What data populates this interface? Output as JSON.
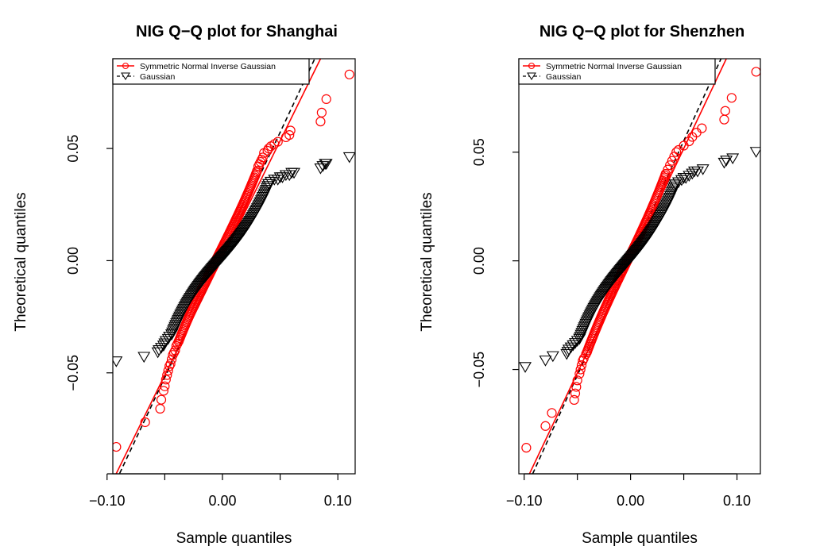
{
  "chart_data": [
    {
      "type": "scatter",
      "title": "NIG Q−Q plot for Shanghai",
      "xlabel": "Sample quantiles",
      "ylabel": "Theoretical quantiles",
      "xlim": [
        -0.095,
        0.115
      ],
      "ylim": [
        -0.095,
        0.09
      ],
      "xticks": [
        -0.1,
        0.0,
        0.1
      ],
      "xtick_labels": [
        "−0.10",
        "0.00",
        "0.10"
      ],
      "xminor": [
        -0.05,
        0.05
      ],
      "yticks": [
        -0.05,
        0.0,
        0.05
      ],
      "ytick_labels": [
        "−0.05",
        "0.00",
        "0.05"
      ],
      "grid": false,
      "legend": {
        "position": "top-left",
        "entries": [
          "Symmetric Normal Inverse Gaussian",
          "Gaussian"
        ]
      },
      "series": [
        {
          "name": "Symmetric Normal Inverse Gaussian",
          "marker": "circle",
          "color": "#ff0000",
          "ref_line": {
            "style": "solid",
            "color": "#ff0000",
            "p1": [
              -0.095,
              -0.098
            ],
            "p2": [
              0.085,
              0.09
            ]
          },
          "tails_low": [
            [
              -0.092,
              -0.083
            ],
            [
              -0.067,
              -0.072
            ],
            [
              -0.054,
              -0.066
            ],
            [
              -0.053,
              -0.062
            ],
            [
              -0.051,
              -0.058
            ],
            [
              -0.05,
              -0.056
            ],
            [
              -0.049,
              -0.053
            ],
            [
              -0.048,
              -0.051
            ],
            [
              -0.047,
              -0.049
            ],
            [
              -0.046,
              -0.047
            ],
            [
              -0.045,
              -0.046
            ],
            [
              -0.044,
              -0.044
            ],
            [
              -0.043,
              -0.042
            ],
            [
              -0.042,
              -0.041
            ],
            [
              -0.041,
              -0.04
            ],
            [
              -0.04,
              -0.038
            ],
            [
              -0.039,
              -0.037
            ],
            [
              -0.038,
              -0.036
            ]
          ],
          "tails_high": [
            [
              0.03,
              0.04
            ],
            [
              0.031,
              0.042
            ],
            [
              0.032,
              0.043
            ],
            [
              0.033,
              0.044
            ],
            [
              0.034,
              0.045
            ],
            [
              0.035,
              0.046
            ],
            [
              0.036,
              0.048
            ],
            [
              0.039,
              0.049
            ],
            [
              0.04,
              0.05
            ],
            [
              0.042,
              0.051
            ],
            [
              0.045,
              0.052
            ],
            [
              0.048,
              0.053
            ],
            [
              0.055,
              0.055
            ],
            [
              0.058,
              0.056
            ],
            [
              0.059,
              0.058
            ],
            [
              0.085,
              0.062
            ],
            [
              0.086,
              0.066
            ],
            [
              0.09,
              0.072
            ],
            [
              0.11,
              0.083
            ]
          ],
          "body": {
            "x_from": -0.038,
            "x_to": 0.03,
            "y_from": -0.036,
            "y_to": 0.04,
            "s": 0.7
          }
        },
        {
          "name": "Gaussian",
          "marker": "triangle-down",
          "color": "#000000",
          "ref_line": {
            "style": "dashed",
            "color": "#000000",
            "p1": [
              -0.092,
              -0.098
            ],
            "p2": [
              0.08,
              0.09
            ]
          },
          "tails_low": [
            [
              -0.092,
              -0.045
            ],
            [
              -0.068,
              -0.043
            ],
            [
              -0.056,
              -0.041
            ],
            [
              -0.055,
              -0.04
            ],
            [
              -0.053,
              -0.039
            ],
            [
              -0.051,
              -0.038
            ],
            [
              -0.05,
              -0.037
            ],
            [
              -0.049,
              -0.036
            ],
            [
              -0.047,
              -0.035
            ],
            [
              -0.046,
              -0.034
            ],
            [
              -0.044,
              -0.033
            ]
          ],
          "tails_high": [
            [
              0.04,
              0.034
            ],
            [
              0.042,
              0.035
            ],
            [
              0.045,
              0.036
            ],
            [
              0.048,
              0.036
            ],
            [
              0.05,
              0.037
            ],
            [
              0.052,
              0.037
            ],
            [
              0.055,
              0.038
            ],
            [
              0.058,
              0.038
            ],
            [
              0.06,
              0.039
            ],
            [
              0.062,
              0.039
            ],
            [
              0.085,
              0.041
            ],
            [
              0.087,
              0.042
            ],
            [
              0.089,
              0.043
            ],
            [
              0.09,
              0.043
            ],
            [
              0.11,
              0.046
            ]
          ],
          "body": {
            "x_from": -0.044,
            "x_to": 0.04,
            "y_from": -0.033,
            "y_to": 0.034,
            "s": 1.4
          }
        }
      ]
    },
    {
      "type": "scatter",
      "title": "NIG Q−Q plot for Shenzhen",
      "xlabel": "Sample quantiles",
      "ylabel": "Theoretical quantiles",
      "xlim": [
        -0.105,
        0.122
      ],
      "ylim": [
        -0.098,
        0.093
      ],
      "xticks": [
        -0.1,
        0.0,
        0.1
      ],
      "xtick_labels": [
        "−0.10",
        "0.00",
        "0.10"
      ],
      "xminor": [
        -0.05,
        0.05
      ],
      "yticks": [
        -0.05,
        0.0,
        0.05
      ],
      "ytick_labels": [
        "−0.05",
        "0.00",
        "0.05"
      ],
      "grid": false,
      "legend": {
        "position": "top-left",
        "entries": [
          "Symmetric Normal Inverse Gaussian",
          "Gaussian"
        ]
      },
      "series": [
        {
          "name": "Symmetric Normal Inverse Gaussian",
          "marker": "circle",
          "color": "#ff0000",
          "ref_line": {
            "style": "solid",
            "color": "#ff0000",
            "p1": [
              -0.095,
              -0.098
            ],
            "p2": [
              0.09,
              0.093
            ]
          },
          "tails_low": [
            [
              -0.098,
              -0.086
            ],
            [
              -0.08,
              -0.076
            ],
            [
              -0.074,
              -0.07
            ],
            [
              -0.053,
              -0.064
            ],
            [
              -0.052,
              -0.061
            ],
            [
              -0.051,
              -0.058
            ],
            [
              -0.05,
              -0.055
            ],
            [
              -0.048,
              -0.052
            ],
            [
              -0.047,
              -0.05
            ],
            [
              -0.046,
              -0.048
            ],
            [
              -0.045,
              -0.046
            ],
            [
              -0.044,
              -0.045
            ],
            [
              -0.042,
              -0.043
            ],
            [
              -0.041,
              -0.042
            ]
          ],
          "tails_high": [
            [
              0.033,
              0.04
            ],
            [
              0.035,
              0.042
            ],
            [
              0.037,
              0.044
            ],
            [
              0.039,
              0.046
            ],
            [
              0.041,
              0.048
            ],
            [
              0.043,
              0.05
            ],
            [
              0.045,
              0.051
            ],
            [
              0.05,
              0.053
            ],
            [
              0.055,
              0.055
            ],
            [
              0.058,
              0.057
            ],
            [
              0.062,
              0.059
            ],
            [
              0.067,
              0.061
            ],
            [
              0.088,
              0.065
            ],
            [
              0.089,
              0.069
            ],
            [
              0.095,
              0.075
            ],
            [
              0.118,
              0.087
            ]
          ],
          "body": {
            "x_from": -0.041,
            "x_to": 0.033,
            "y_from": -0.042,
            "y_to": 0.04,
            "s": 0.75
          }
        },
        {
          "name": "Gaussian",
          "marker": "triangle-down",
          "color": "#000000",
          "ref_line": {
            "style": "dashed",
            "color": "#000000",
            "p1": [
              -0.092,
              -0.098
            ],
            "p2": [
              0.085,
              0.093
            ]
          },
          "tails_low": [
            [
              -0.099,
              -0.049
            ],
            [
              -0.08,
              -0.046
            ],
            [
              -0.073,
              -0.044
            ],
            [
              -0.06,
              -0.043
            ],
            [
              -0.059,
              -0.042
            ],
            [
              -0.058,
              -0.041
            ],
            [
              -0.056,
              -0.04
            ],
            [
              -0.054,
              -0.039
            ],
            [
              -0.052,
              -0.038
            ],
            [
              -0.05,
              -0.037
            ],
            [
              -0.048,
              -0.036
            ]
          ],
          "tails_high": [
            [
              0.042,
              0.035
            ],
            [
              0.045,
              0.036
            ],
            [
              0.048,
              0.037
            ],
            [
              0.05,
              0.038
            ],
            [
              0.052,
              0.038
            ],
            [
              0.055,
              0.039
            ],
            [
              0.058,
              0.04
            ],
            [
              0.06,
              0.041
            ],
            [
              0.063,
              0.041
            ],
            [
              0.068,
              0.042
            ],
            [
              0.088,
              0.045
            ],
            [
              0.09,
              0.046
            ],
            [
              0.096,
              0.047
            ],
            [
              0.118,
              0.05
            ]
          ],
          "body": {
            "x_from": -0.048,
            "x_to": 0.042,
            "y_from": -0.036,
            "y_to": 0.035,
            "s": 1.4
          }
        }
      ]
    }
  ]
}
